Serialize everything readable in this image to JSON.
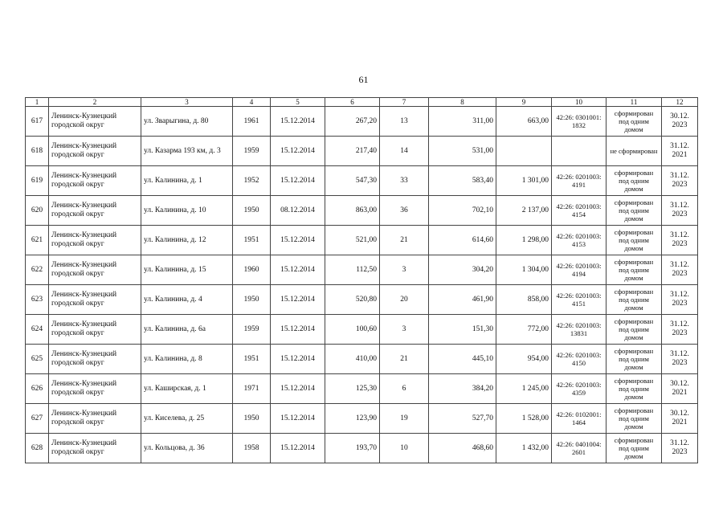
{
  "page_number": "61",
  "headers": [
    "1",
    "2",
    "3",
    "4",
    "5",
    "6",
    "7",
    "8",
    "9",
    "10",
    "11",
    "12"
  ],
  "rows": [
    {
      "n": "617",
      "mo": "Ленинск-Кузнецкий городской округ",
      "addr": "ул. Зварыгина, д. 80",
      "year": "1961",
      "date": "15.12.2014",
      "area": "267,20",
      "residents": "13",
      "land": "311,00",
      "land2": "663,00",
      "cad": "42:26: 0301001: 1832",
      "status": "сформирован под одним домом",
      "deadline": "30.12. 2023"
    },
    {
      "n": "618",
      "mo": "Ленинск-Кузнецкий городской округ",
      "addr": "ул. Казарма 193 км, д. 3",
      "year": "1959",
      "date": "15.12.2014",
      "area": "217,40",
      "residents": "14",
      "land": "531,00",
      "land2": "",
      "cad": "",
      "status": "не сформирован",
      "deadline": "31.12. 2021"
    },
    {
      "n": "619",
      "mo": "Ленинск-Кузнецкий городской округ",
      "addr": "ул. Калинина, д. 1",
      "year": "1952",
      "date": "15.12.2014",
      "area": "547,30",
      "residents": "33",
      "land": "583,40",
      "land2": "1 301,00",
      "cad": "42:26: 0201003: 4191",
      "status": "сформирован под одним домом",
      "deadline": "31.12. 2023"
    },
    {
      "n": "620",
      "mo": "Ленинск-Кузнецкий городской округ",
      "addr": "ул. Калинина, д. 10",
      "year": "1950",
      "date": "08.12.2014",
      "area": "863,00",
      "residents": "36",
      "land": "702,10",
      "land2": "2 137,00",
      "cad": "42:26: 0201003: 4154",
      "status": "сформирован под одним домом",
      "deadline": "31.12. 2023"
    },
    {
      "n": "621",
      "mo": "Ленинск-Кузнецкий городской округ",
      "addr": "ул. Калинина, д. 12",
      "year": "1951",
      "date": "15.12.2014",
      "area": "521,00",
      "residents": "21",
      "land": "614,60",
      "land2": "1 298,00",
      "cad": "42:26: 0201003: 4153",
      "status": "сформирован под одним домом",
      "deadline": "31.12. 2023"
    },
    {
      "n": "622",
      "mo": "Ленинск-Кузнецкий городской округ",
      "addr": "ул. Калинина, д. 15",
      "year": "1960",
      "date": "15.12.2014",
      "area": "112,50",
      "residents": "3",
      "land": "304,20",
      "land2": "1 304,00",
      "cad": "42:26: 0201003: 4194",
      "status": "сформирован под одним домом",
      "deadline": "31.12. 2023"
    },
    {
      "n": "623",
      "mo": "Ленинск-Кузнецкий городской округ",
      "addr": "ул. Калинина, д. 4",
      "year": "1950",
      "date": "15.12.2014",
      "area": "520,80",
      "residents": "20",
      "land": "461,90",
      "land2": "858,00",
      "cad": "42:26: 0201003: 4151",
      "status": "сформирован под одним домом",
      "deadline": "31.12. 2023"
    },
    {
      "n": "624",
      "mo": "Ленинск-Кузнецкий городской округ",
      "addr": "ул. Калинина, д. 6а",
      "year": "1959",
      "date": "15.12.2014",
      "area": "100,60",
      "residents": "3",
      "land": "151,30",
      "land2": "772,00",
      "cad": "42:26: 0201003: 13831",
      "status": "сформирован под одним домом",
      "deadline": "31.12. 2023"
    },
    {
      "n": "625",
      "mo": "Ленинск-Кузнецкий городской округ",
      "addr": "ул. Калинина, д. 8",
      "year": "1951",
      "date": "15.12.2014",
      "area": "410,00",
      "residents": "21",
      "land": "445,10",
      "land2": "954,00",
      "cad": "42:26: 0201003: 4150",
      "status": "сформирован под одним домом",
      "deadline": "31.12. 2023"
    },
    {
      "n": "626",
      "mo": "Ленинск-Кузнецкий городской округ",
      "addr": "ул. Каширская, д. 1",
      "year": "1971",
      "date": "15.12.2014",
      "area": "125,30",
      "residents": "6",
      "land": "384,20",
      "land2": "1 245,00",
      "cad": "42:26: 0201003: 4359",
      "status": "сформирован под одним домом",
      "deadline": "30.12. 2021"
    },
    {
      "n": "627",
      "mo": "Ленинск-Кузнецкий городской округ",
      "addr": "ул. Киселева, д. 25",
      "year": "1950",
      "date": "15.12.2014",
      "area": "123,90",
      "residents": "19",
      "land": "527,70",
      "land2": "1 528,00",
      "cad": "42:26: 0102001: 1464",
      "status": "сформирован под одним домом",
      "deadline": "30.12. 2021"
    },
    {
      "n": "628",
      "mo": "Ленинск-Кузнецкий городской округ",
      "addr": "ул. Кольцова, д. 36",
      "year": "1958",
      "date": "15.12.2014",
      "area": "193,70",
      "residents": "10",
      "land": "468,60",
      "land2": "1 432,00",
      "cad": "42:26: 0401004: 2601",
      "status": "сформирован под одним домом",
      "deadline": "31.12. 2023"
    }
  ]
}
